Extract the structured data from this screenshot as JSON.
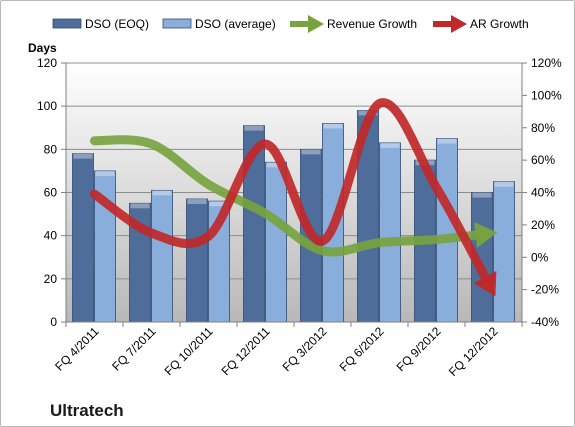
{
  "chart_data": {
    "type": "bar",
    "title": "",
    "company": "Ultratech",
    "ylabel": "Days",
    "categories": [
      "FQ 4/2011",
      "FQ 7/2011",
      "FQ 10/2011",
      "FQ 12/2011",
      "FQ 3/2012",
      "FQ 6/2012",
      "FQ 9/2012",
      "FQ 12/2012"
    ],
    "ylim": [
      0,
      120
    ],
    "y_ticks": [
      "0",
      "20",
      "40",
      "60",
      "80",
      "100",
      "120"
    ],
    "y2lim": [
      -0.4,
      1.2
    ],
    "y2_ticks": [
      "-40%",
      "-20%",
      "0%",
      "20%",
      "40%",
      "60%",
      "80%",
      "100%",
      "120%"
    ],
    "grid": true,
    "legend_position": "top",
    "series": [
      {
        "name": "DSO (EOQ)",
        "type": "bar",
        "axis": "left",
        "color": "#4f6d9a",
        "values": [
          78,
          55,
          57,
          91,
          80,
          98,
          75,
          60
        ]
      },
      {
        "name": "DSO (average)",
        "type": "bar",
        "axis": "left",
        "color": "#8aaedc",
        "values": [
          70,
          61,
          56,
          74,
          92,
          83,
          85,
          65
        ]
      },
      {
        "name": "Revenue Growth",
        "type": "arrow-line",
        "axis": "right",
        "color": "#77a33f",
        "values": [
          0.72,
          0.7,
          0.45,
          0.27,
          0.04,
          0.09,
          0.11,
          0.15
        ]
      },
      {
        "name": "AR Growth",
        "type": "arrow-line",
        "axis": "right",
        "color": "#c0282a",
        "values": [
          0.39,
          0.15,
          0.13,
          0.7,
          0.1,
          0.95,
          0.43,
          -0.22
        ]
      }
    ]
  }
}
